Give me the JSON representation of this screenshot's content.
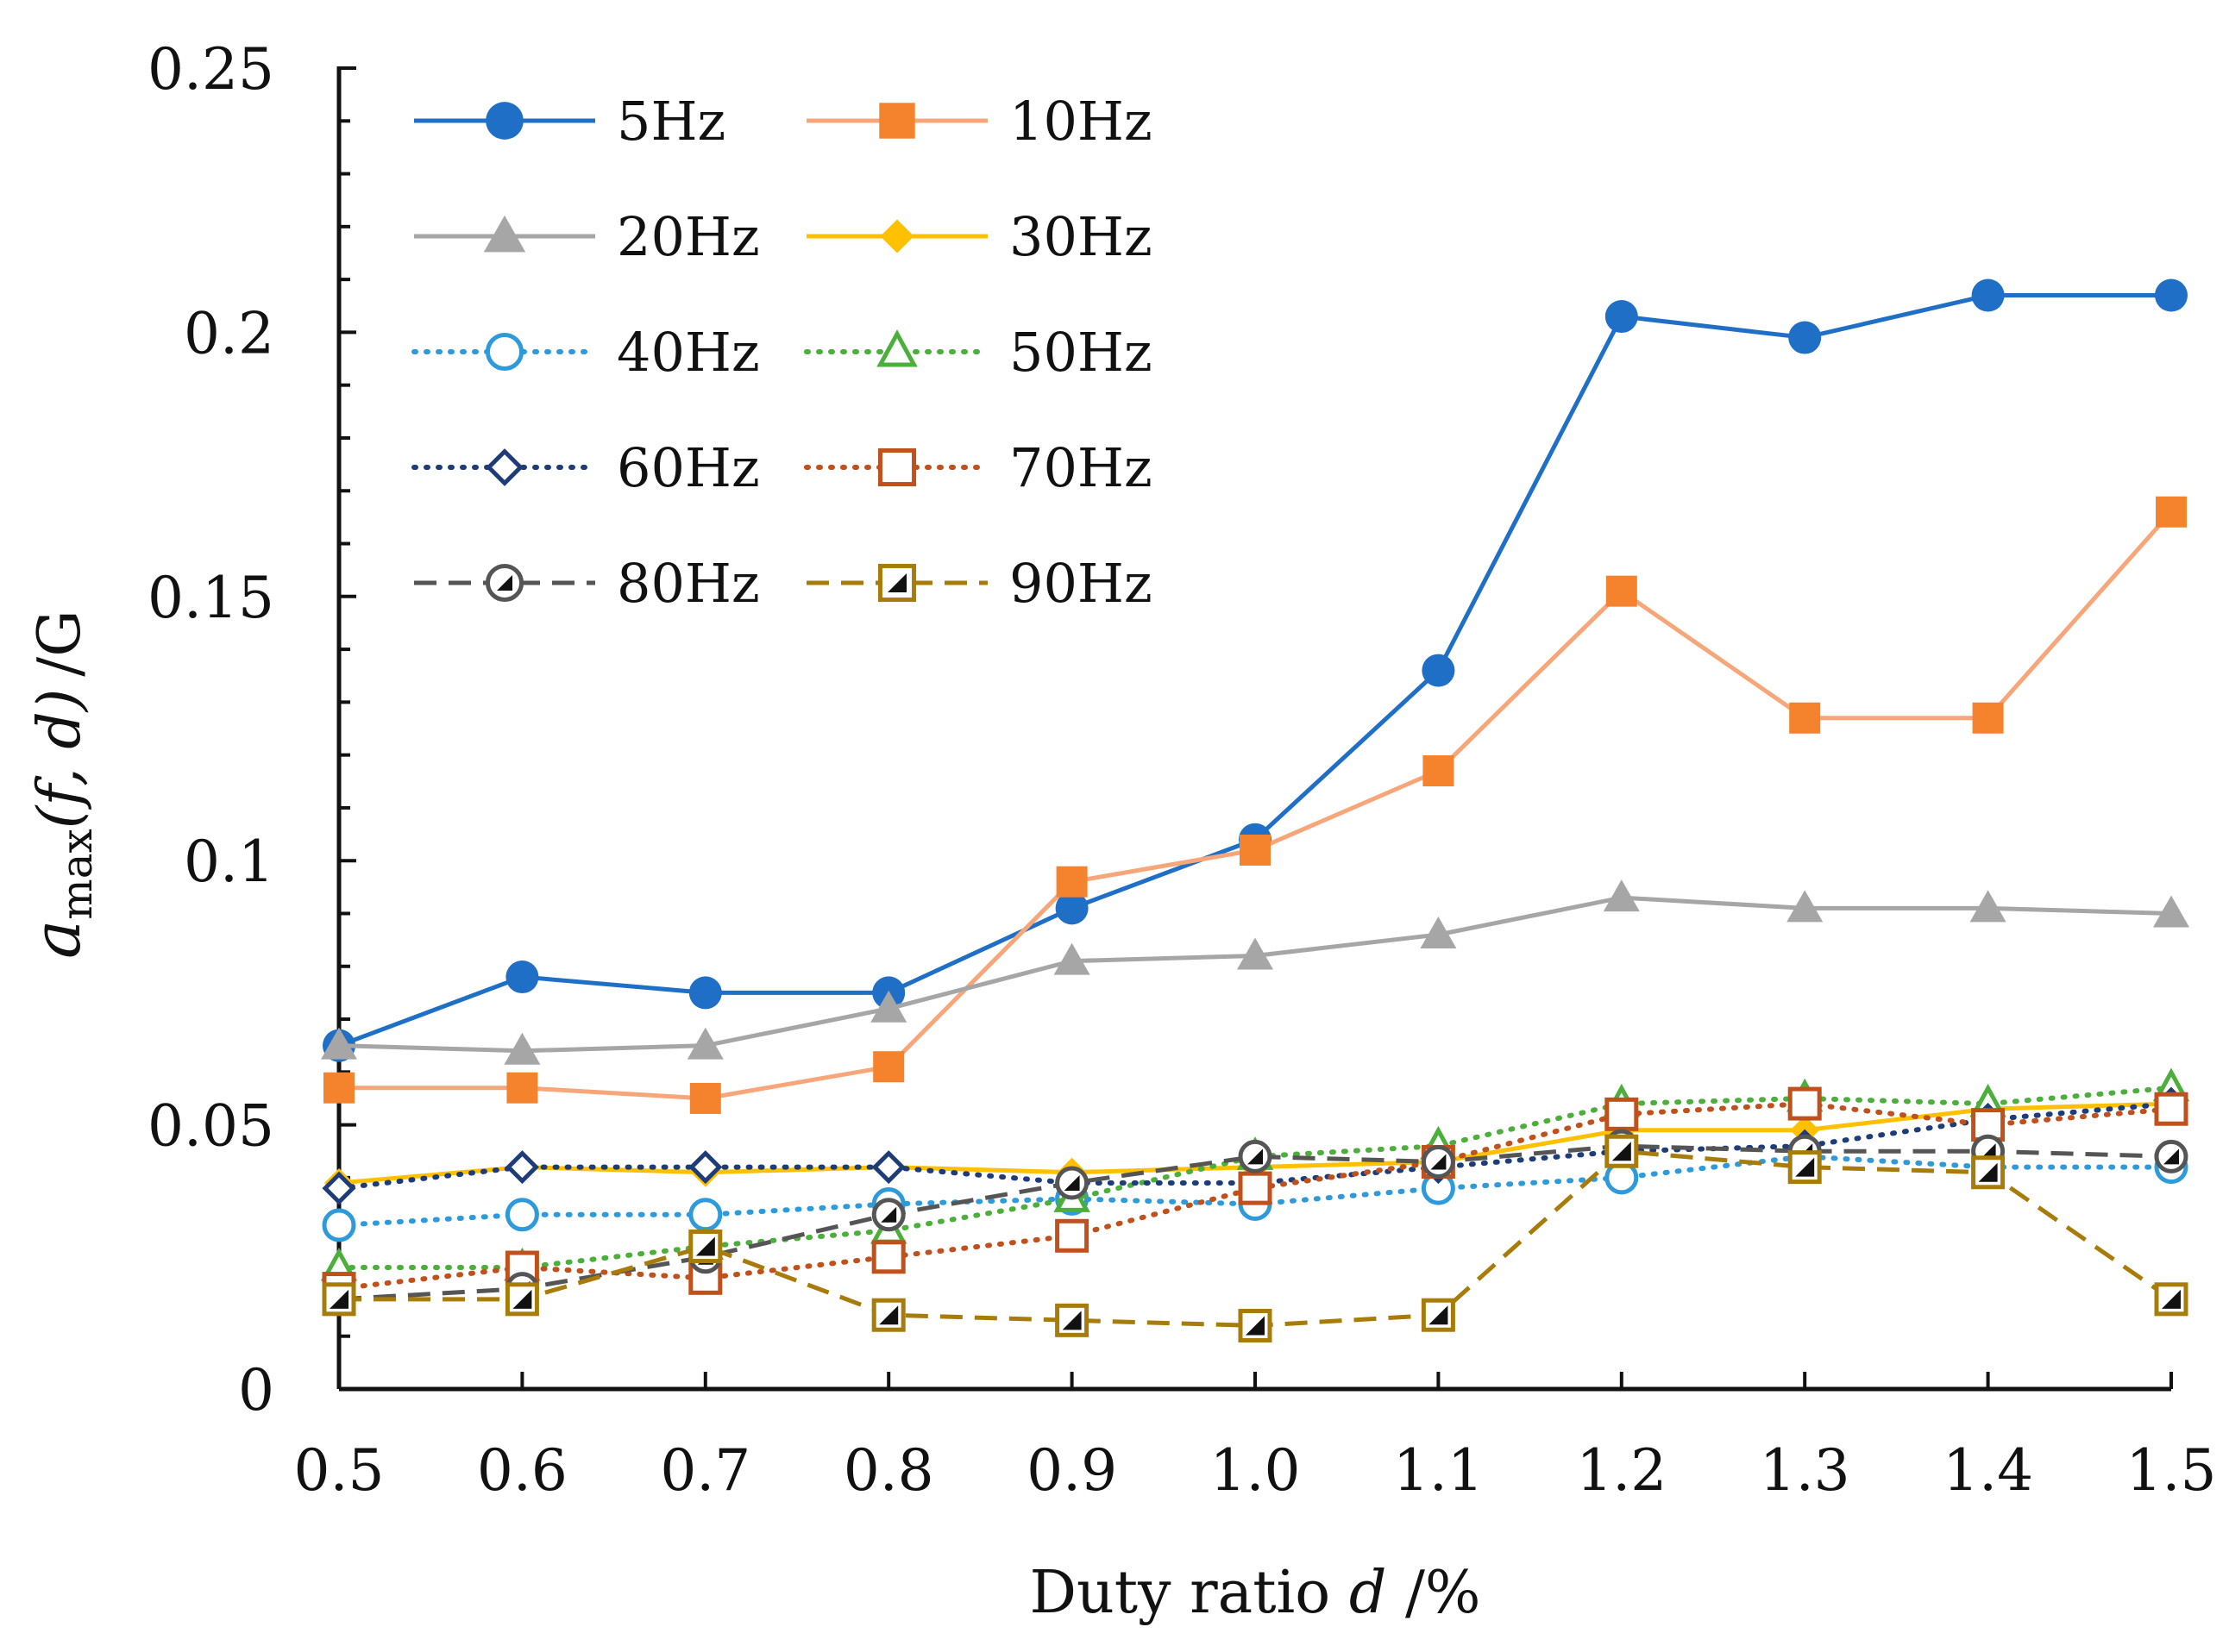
{
  "chart_data": {
    "type": "line",
    "title": "",
    "xlabel": "Duty ratio d /%",
    "ylabel": "a_max(f, d) /G",
    "ylabel_main": "a",
    "ylabel_sub": "max",
    "ylabel_args": "(f, d)",
    "ylabel_unit": "/G",
    "xlabel_text": "Duty ratio ",
    "xlabel_var": "d",
    "xlabel_unit": " /%",
    "categories": [
      "0.5",
      "0.6",
      "0.7",
      "0.8",
      "0.9",
      "1.0",
      "1.1",
      "1.2",
      "1.3",
      "1.4",
      "1.5"
    ],
    "ylim": [
      0,
      0.25
    ],
    "yticks": [
      "0",
      "0.05",
      "0.1",
      "0.15",
      "0.2",
      "0.25"
    ],
    "grid": false,
    "legend_position": "top-left",
    "series": [
      {
        "name": "5Hz",
        "color": "#1f6fc6",
        "dash": "solid",
        "marker": "circle-filled",
        "values": [
          0.065,
          0.078,
          0.075,
          0.075,
          0.091,
          0.104,
          0.136,
          0.203,
          0.199,
          0.207,
          0.207
        ]
      },
      {
        "name": "10Hz",
        "color": "#f7a67a",
        "markerColor": "#f5832d",
        "dash": "solid",
        "marker": "square-filled",
        "values": [
          0.057,
          0.057,
          0.055,
          0.061,
          0.096,
          0.102,
          0.117,
          0.151,
          0.127,
          0.127,
          0.166
        ]
      },
      {
        "name": "20Hz",
        "color": "#a6a6a6",
        "dash": "solid",
        "marker": "triangle-filled",
        "values": [
          0.065,
          0.064,
          0.065,
          0.072,
          0.081,
          0.082,
          0.086,
          0.093,
          0.091,
          0.091,
          0.09
        ]
      },
      {
        "name": "30Hz",
        "color": "#ffc000",
        "dash": "solid",
        "marker": "diamond-filled",
        "values": [
          0.039,
          0.042,
          0.041,
          0.042,
          0.041,
          0.042,
          0.043,
          0.049,
          0.049,
          0.053,
          0.054
        ]
      },
      {
        "name": "40Hz",
        "color": "#2e9ad9",
        "dash": "dotted",
        "marker": "circle-open",
        "values": [
          0.031,
          0.033,
          0.033,
          0.035,
          0.036,
          0.035,
          0.038,
          0.04,
          0.044,
          0.042,
          0.042
        ]
      },
      {
        "name": "50Hz",
        "color": "#4caf3c",
        "dash": "dotted",
        "marker": "triangle-open",
        "values": [
          0.023,
          0.023,
          0.027,
          0.03,
          0.036,
          0.044,
          0.046,
          0.054,
          0.055,
          0.054,
          0.057
        ]
      },
      {
        "name": "60Hz",
        "color": "#1d3c78",
        "dash": "dotted",
        "marker": "diamond-open",
        "values": [
          0.038,
          0.042,
          0.042,
          0.042,
          0.039,
          0.039,
          0.042,
          0.045,
          0.046,
          0.051,
          0.054
        ]
      },
      {
        "name": "70Hz",
        "color": "#c0501c",
        "dash": "dotted",
        "marker": "square-open",
        "values": [
          0.019,
          0.023,
          0.021,
          0.025,
          0.029,
          0.038,
          0.043,
          0.052,
          0.054,
          0.05,
          0.053
        ]
      },
      {
        "name": "80Hz",
        "color": "#555555",
        "dash": "dashed",
        "marker": "circle-open-black",
        "values": [
          0.017,
          0.019,
          0.025,
          0.033,
          0.039,
          0.044,
          0.043,
          0.046,
          0.045,
          0.045,
          0.044
        ]
      },
      {
        "name": "90Hz",
        "color": "#a87c0a",
        "dash": "dashed",
        "marker": "square-pattern",
        "values": [
          0.017,
          0.017,
          0.027,
          0.014,
          0.013,
          0.012,
          0.014,
          0.045,
          0.042,
          0.041,
          0.017
        ]
      }
    ]
  }
}
